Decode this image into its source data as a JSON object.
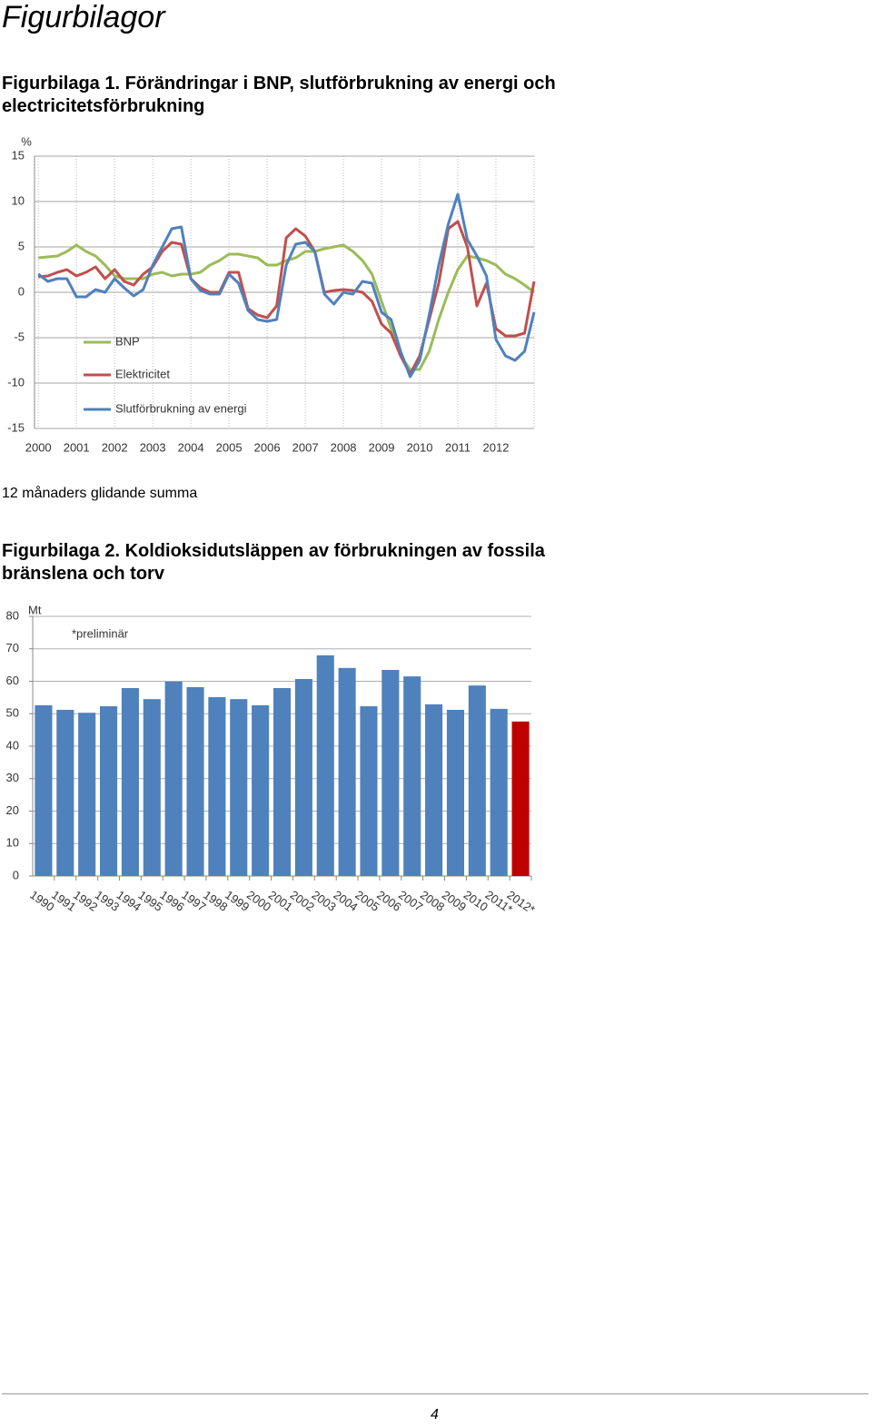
{
  "heading": "Figurbilagor",
  "figure1_caption": "Figurbilaga 1. Förändringar i BNP, slutförbrukning av energi och electricitetsförbrukning",
  "figure1_note": "12 månaders glidande summa",
  "figure2_caption": "Figurbilaga 2. Koldioksidutsläppen av förbrukningen av fossila bränslena och torv",
  "page_number": "4",
  "chart_data": [
    {
      "type": "line",
      "y_label": "%",
      "legend": "left",
      "grid": true,
      "x": [
        2000,
        2000.25,
        2000.5,
        2000.75,
        2001,
        2001.25,
        2001.5,
        2001.75,
        2002,
        2002.25,
        2002.5,
        2002.75,
        2003,
        2003.25,
        2003.5,
        2003.75,
        2004,
        2004.25,
        2004.5,
        2004.75,
        2005,
        2005.25,
        2005.5,
        2005.75,
        2006,
        2006.25,
        2006.5,
        2006.75,
        2007,
        2007.25,
        2007.5,
        2007.75,
        2008,
        2008.25,
        2008.5,
        2008.75,
        2009,
        2009.25,
        2009.5,
        2009.75,
        2010,
        2010.25,
        2010.5,
        2010.75,
        2011,
        2011.25,
        2011.5,
        2011.75,
        2012,
        2012.25,
        2012.5,
        2012.75,
        2013
      ],
      "xlim": [
        1999.9,
        2013
      ],
      "xticks": [
        2000,
        2001,
        2002,
        2003,
        2004,
        2005,
        2006,
        2007,
        2008,
        2009,
        2010,
        2011,
        2012
      ],
      "ylim": [
        -15,
        15
      ],
      "yticks": [
        -15,
        -10,
        -5,
        0,
        5,
        10,
        15
      ],
      "series": [
        {
          "name": "BNP",
          "color": "#9bbb59",
          "values": [
            3.8,
            3.9,
            4.0,
            4.5,
            5.2,
            4.5,
            4.0,
            3.0,
            1.8,
            1.5,
            1.5,
            1.5,
            2.0,
            2.2,
            1.8,
            2.0,
            2.0,
            2.2,
            3.0,
            3.5,
            4.2,
            4.2,
            4.0,
            3.8,
            3.0,
            3.0,
            3.5,
            3.8,
            4.5,
            4.5,
            4.8,
            5.0,
            5.2,
            4.5,
            3.5,
            2.0,
            -1,
            -4,
            -7,
            -8.5,
            -8.5,
            -6.5,
            -3,
            0,
            2.5,
            4,
            3.8,
            3.5,
            3,
            2,
            1.5,
            0.8,
            0
          ]
        },
        {
          "name": "Elektricitet",
          "color": "#c0504d",
          "values": [
            1.7,
            1.8,
            2.2,
            2.5,
            1.8,
            2.2,
            2.8,
            1.5,
            2.5,
            1.2,
            0.8,
            2.0,
            2.8,
            4.5,
            5.5,
            5.3,
            1.5,
            0.5,
            0,
            0,
            2.2,
            2.2,
            -1.8,
            -2.5,
            -2.8,
            -1.5,
            6,
            7,
            6.2,
            4.5,
            0,
            0.2,
            0.3,
            0.2,
            0,
            -1,
            -3.5,
            -4.5,
            -7,
            -9,
            -7,
            -3,
            1,
            7,
            7.8,
            5,
            -1.5,
            1,
            -4,
            -4.8,
            -4.8,
            -4.5,
            1.2
          ]
        },
        {
          "name": "Slutförbrukning av energi",
          "color": "#4f81bd",
          "values": [
            2,
            1.2,
            1.5,
            1.5,
            -0.5,
            -0.5,
            0.3,
            0,
            1.5,
            0.5,
            -0.4,
            0.3,
            3,
            5,
            7,
            7.2,
            1.5,
            0.2,
            -0.2,
            -0.2,
            2,
            1,
            -2,
            -3,
            -3.2,
            -3,
            3,
            5.3,
            5.5,
            4.5,
            -0.2,
            -1.3,
            0,
            -0.2,
            1.2,
            1,
            -2.2,
            -3,
            -6.5,
            -9.3,
            -7.5,
            -2.5,
            3,
            7.5,
            10.8,
            5.8,
            4,
            1.8,
            -5.2,
            -7,
            -7.5,
            -6.5,
            -2.2
          ]
        }
      ]
    },
    {
      "type": "bar",
      "y_label": "Mt",
      "annotation": "*preliminär",
      "grid": true,
      "categories": [
        "1990",
        "1991",
        "1992",
        "1993",
        "1994",
        "1995",
        "1996",
        "1997",
        "1998",
        "1999",
        "2000",
        "2001",
        "2002",
        "2003",
        "2004",
        "2005",
        "2006",
        "2007",
        "2008",
        "2009",
        "2010",
        "2011*",
        "2012*"
      ],
      "values": [
        52.6,
        51.2,
        50.3,
        52.3,
        57.9,
        54.5,
        59.9,
        58.2,
        55.1,
        54.5,
        52.6,
        57.9,
        60.7,
        68,
        64.1,
        52.3,
        63.5,
        61.5,
        52.9,
        51.2,
        58.7,
        51.5,
        47.6
      ],
      "colors": [
        "#4f81bd",
        "#4f81bd",
        "#4f81bd",
        "#4f81bd",
        "#4f81bd",
        "#4f81bd",
        "#4f81bd",
        "#4f81bd",
        "#4f81bd",
        "#4f81bd",
        "#4f81bd",
        "#4f81bd",
        "#4f81bd",
        "#4f81bd",
        "#4f81bd",
        "#4f81bd",
        "#4f81bd",
        "#4f81bd",
        "#4f81bd",
        "#4f81bd",
        "#4f81bd",
        "#4f81bd",
        "#c00000"
      ],
      "ylim": [
        0,
        80
      ],
      "yticks": [
        0,
        10,
        20,
        30,
        40,
        50,
        60,
        70,
        80
      ]
    }
  ]
}
